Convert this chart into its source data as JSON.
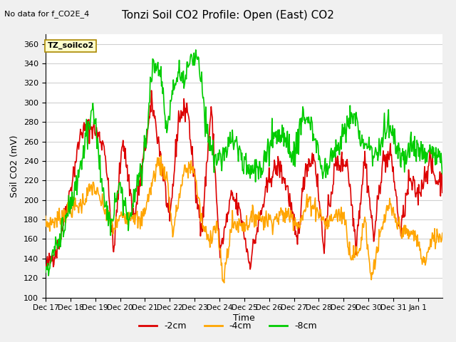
{
  "title": "Tonzi Soil CO2 Profile: Open (East) CO2",
  "subtitle": "No data for f_CO2E_4",
  "ylabel": "Soil CO2 (mV)",
  "xlabel": "Time",
  "legend_label": "TZ_soilco2",
  "ylim": [
    100,
    370
  ],
  "yticks": [
    100,
    120,
    140,
    160,
    180,
    200,
    220,
    240,
    260,
    280,
    300,
    320,
    340,
    360
  ],
  "series_labels": [
    "-2cm",
    "-4cm",
    "-8cm"
  ],
  "series_colors": [
    "#dd0000",
    "#ffa500",
    "#00cc00"
  ],
  "background_color": "#f0f0f0",
  "plot_bg_color": "#ffffff",
  "grid_color": "#d0d0d0",
  "line_width": 1.2,
  "xtick_labels": [
    "Dec 17",
    "Dec 18",
    "Dec 19",
    "Dec 20",
    "Dec 21",
    "Dec 22",
    "Dec 23",
    "Dec 24",
    "Dec 25",
    "Dec 26",
    "Dec 27",
    "Dec 28",
    "Dec 29",
    "Dec 30",
    "Dec 31",
    "Jan 1"
  ],
  "num_points": 672
}
